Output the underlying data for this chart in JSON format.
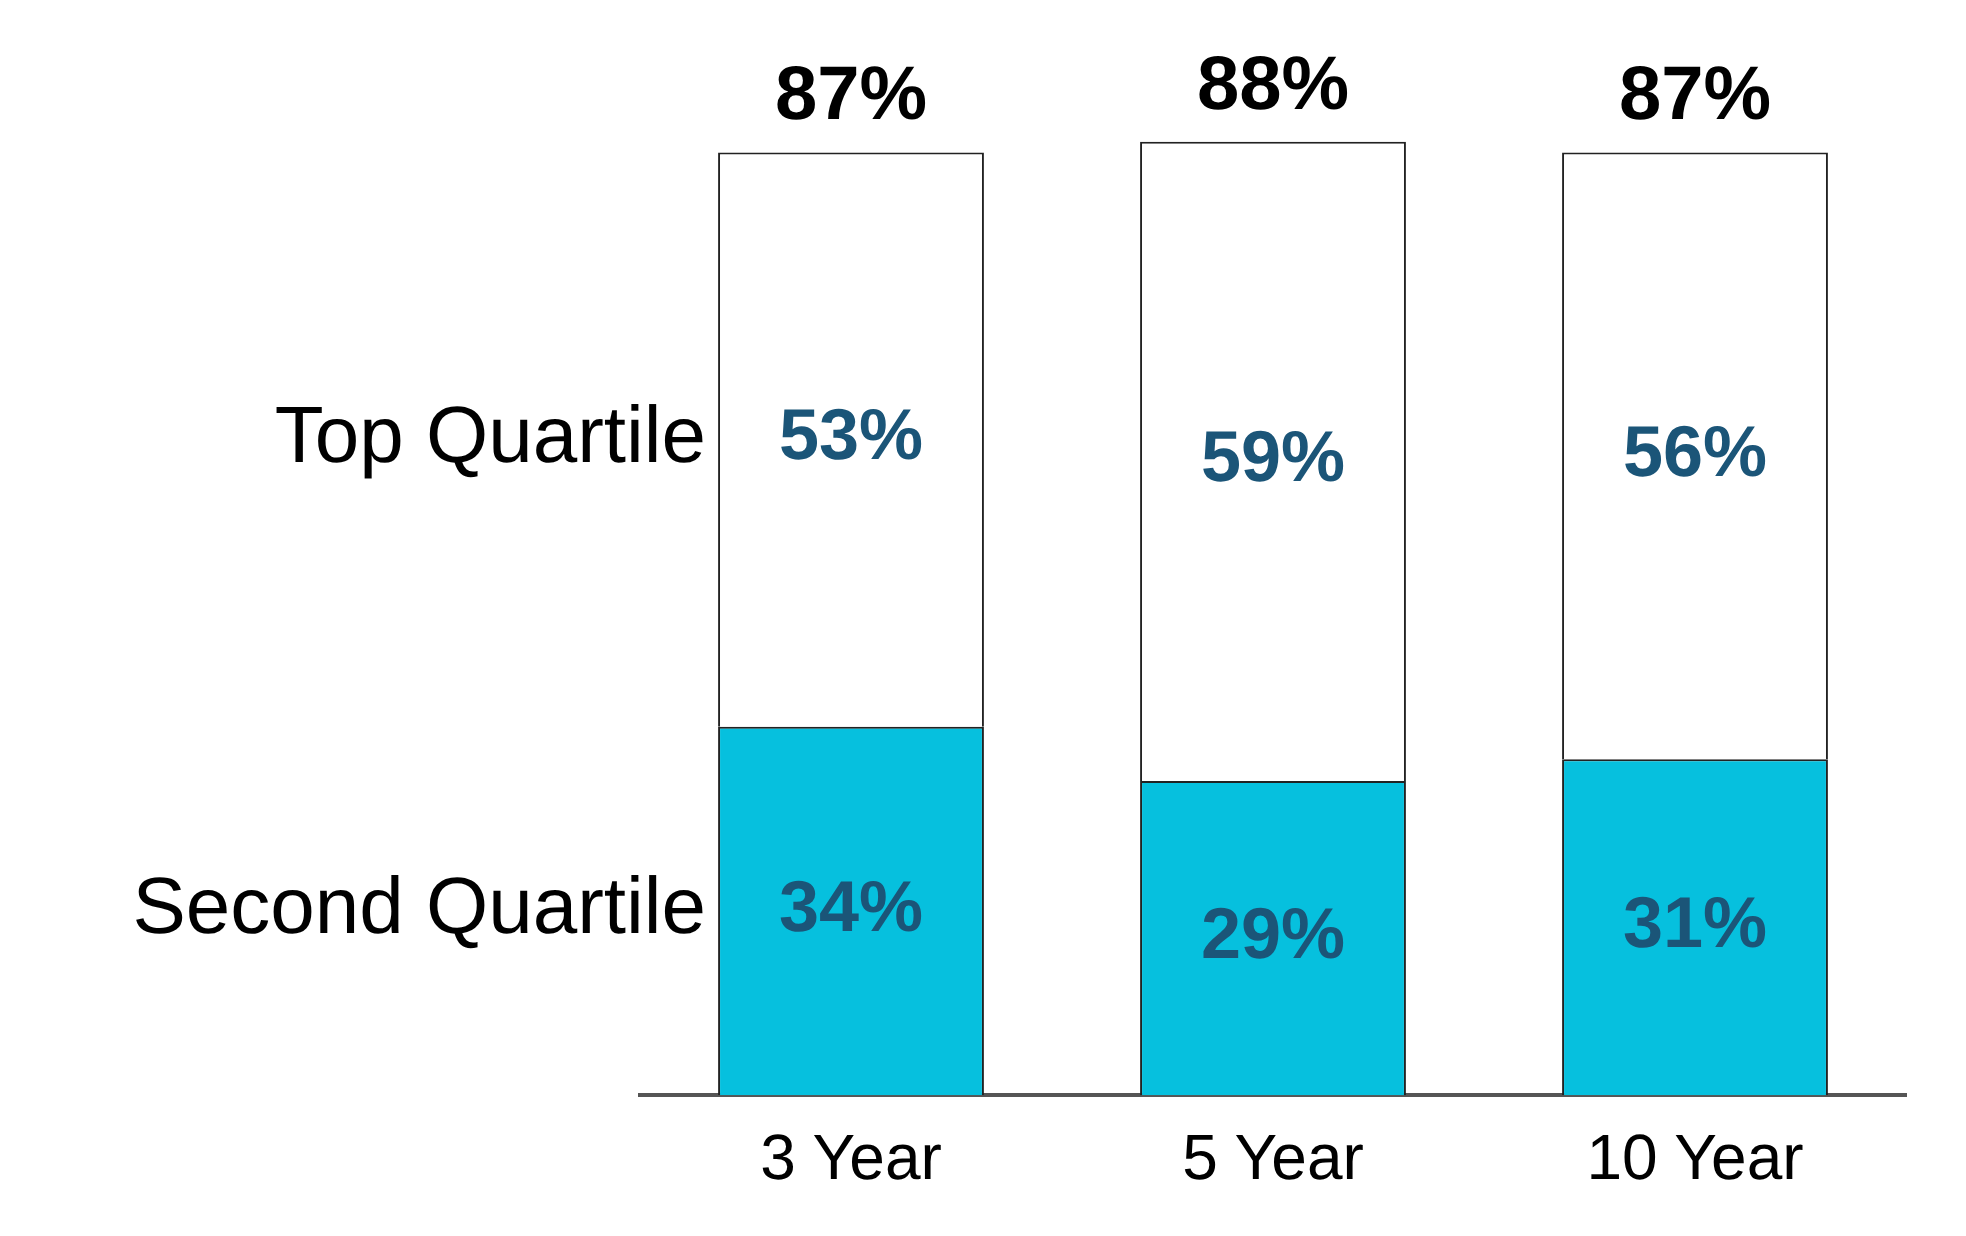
{
  "chart_data": {
    "type": "bar",
    "stacked": true,
    "categories": [
      "3 Year",
      "5 Year",
      "10 Year"
    ],
    "series": [
      {
        "name": "Second Quartile",
        "color": "#06c0de",
        "values": [
          34,
          29,
          31
        ],
        "value_labels": [
          "34%",
          "29%",
          "31%"
        ]
      },
      {
        "name": "Top Quartile",
        "color": "#ffffff",
        "values": [
          53,
          59,
          56
        ],
        "value_labels": [
          "53%",
          "59%",
          "56%"
        ]
      }
    ],
    "totals": [
      "87%",
      "88%",
      "87%"
    ],
    "grid": false,
    "legend": false,
    "tick_labels": "x"
  }
}
